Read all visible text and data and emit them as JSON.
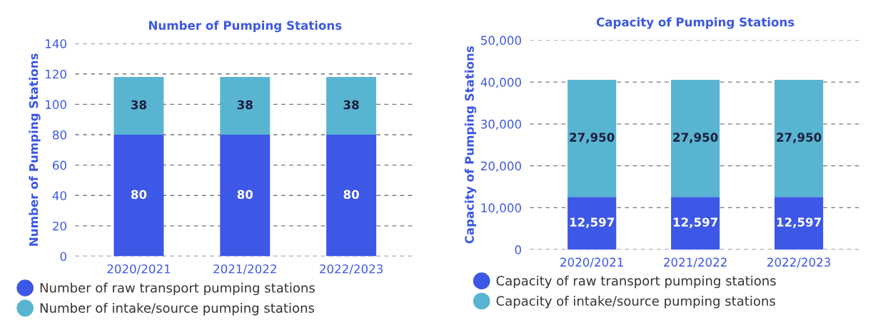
{
  "chart_data": [
    {
      "type": "bar",
      "title": "Number of Pumping Stations",
      "ylabel": "Number of Pumping Stations",
      "categories": [
        "2020/2021",
        "2021/2022",
        "2022/2023"
      ],
      "stacked": true,
      "series": [
        {
          "name": "Number of raw transport pumping stations",
          "color": "#3d57e6",
          "values": [
            80,
            80,
            80
          ],
          "value_labels": [
            "80",
            "80",
            "80"
          ]
        },
        {
          "name": "Number of intake/source pumping stations",
          "color": "#58b4d1",
          "values": [
            38,
            38,
            38
          ],
          "value_labels": [
            "38",
            "38",
            "38"
          ]
        }
      ],
      "ylim": [
        0,
        140
      ],
      "yticks": [
        0,
        20,
        40,
        60,
        80,
        100,
        120,
        140
      ],
      "grid": "y",
      "legend": "bottom"
    },
    {
      "type": "bar",
      "title": "Capacity of Pumping Stations",
      "ylabel": "Capacity of Pumping Stations",
      "categories": [
        "2020/2021",
        "2021/2022",
        "2022/2023"
      ],
      "stacked": true,
      "series": [
        {
          "name": "Capacity of raw transport pumping stations",
          "color": "#3d57e6",
          "values": [
            12597,
            12597,
            12597
          ],
          "value_labels": [
            "12,597",
            "12,597",
            "12,597"
          ]
        },
        {
          "name": "Capacity of intake/source pumping stations",
          "color": "#58b4d1",
          "values": [
            27950,
            27950,
            27950
          ],
          "value_labels": [
            "27,950",
            "27,950",
            "27,950"
          ]
        }
      ],
      "ylim": [
        0,
        50000
      ],
      "yticks": [
        0,
        {
          "value": 10000,
          "label": "10,000"
        },
        {
          "value": 20000,
          "label": "20,000"
        },
        {
          "value": 30000,
          "label": "30,000"
        },
        {
          "value": 40000,
          "label": "40,000"
        },
        {
          "value": 50000,
          "label": "50,000"
        }
      ],
      "grid": "y",
      "legend": "bottom"
    }
  ]
}
